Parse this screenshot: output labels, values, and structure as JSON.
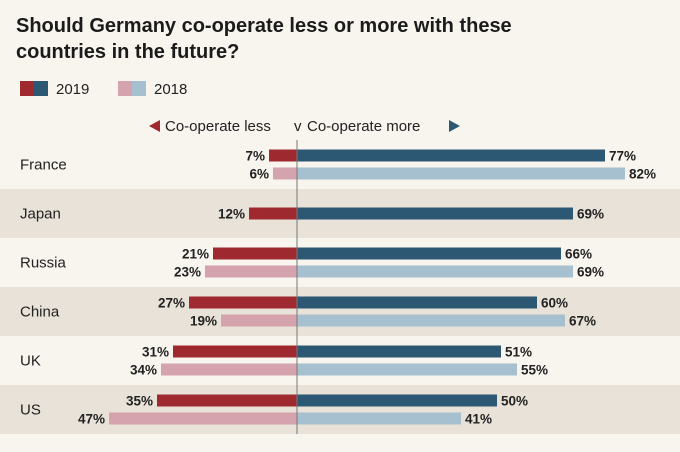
{
  "chart_data": {
    "type": "bar",
    "title": "Should Germany co-operate less or more with these countries in the future?",
    "title_lines": [
      "Should Germany co-operate less or more with these",
      "countries in the future?"
    ],
    "direction_labels": {
      "less": "Co-operate less",
      "separator": "v",
      "more": "Co-operate more"
    },
    "categories": [
      "France",
      "Japan",
      "Russia",
      "China",
      "UK",
      "US"
    ],
    "series": [
      {
        "name": "2019",
        "less": [
          7,
          12,
          21,
          27,
          31,
          35
        ],
        "more": [
          77,
          69,
          66,
          60,
          51,
          50
        ],
        "color_less": "#9e2a2f",
        "color_more": "#2c5873"
      },
      {
        "name": "2018",
        "less": [
          6,
          null,
          23,
          19,
          34,
          47
        ],
        "more": [
          82,
          null,
          69,
          67,
          55,
          41
        ],
        "color_less": "#d4a3ad",
        "color_more": "#a6c0cf"
      }
    ],
    "value_suffix": "%",
    "legend_position": "top-left",
    "band_color": "#e8e2d8",
    "background": "#f8f4ee"
  }
}
